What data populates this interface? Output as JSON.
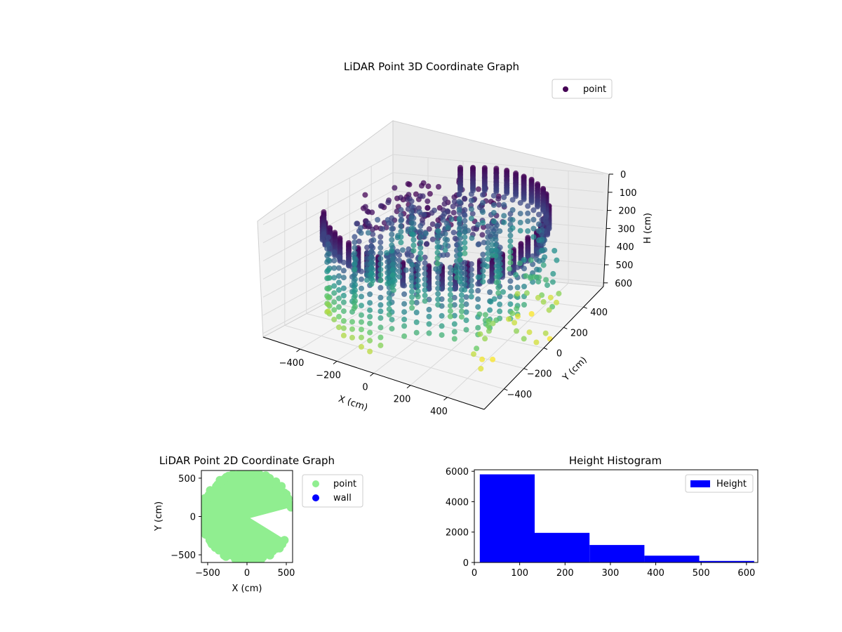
{
  "chart_data": [
    {
      "type": "scatter",
      "projection": "3d",
      "title": "LiDAR Point 3D Coordinate Graph",
      "xlabel": "X (cm)",
      "ylabel": "Y (cm)",
      "zlabel": "H (cm)",
      "xticks": [
        -400,
        -200,
        0,
        200,
        400
      ],
      "yticks": [
        -400,
        -200,
        0,
        200,
        400
      ],
      "zticks": [
        0,
        100,
        200,
        300,
        400,
        500,
        600
      ],
      "xlim": [
        -600,
        600
      ],
      "ylim": [
        -600,
        600
      ],
      "zlim": [
        0,
        620
      ],
      "z_axis_inverted": true,
      "colormap": "viridis",
      "color_by": "height",
      "legend": {
        "position": "upper-right",
        "entries": [
          {
            "label": "point",
            "color": "#440154"
          }
        ]
      },
      "series": [
        {
          "name": "point",
          "description_of_shape": "ring of points at radius ~550 cm, heights 0-600 cm, dense wall open toward +X/-Y, sparse scatter inside",
          "sample_points": [
            {
              "x": -550,
              "y": 0,
              "h": 50
            },
            {
              "x": -500,
              "y": 230,
              "h": 60
            },
            {
              "x": -390,
              "y": 390,
              "h": 40
            },
            {
              "x": -200,
              "y": 520,
              "h": 30
            },
            {
              "x": 0,
              "y": 550,
              "h": 20
            },
            {
              "x": 200,
              "y": 520,
              "h": 20
            },
            {
              "x": 390,
              "y": 390,
              "h": 30
            },
            {
              "x": 520,
              "y": 180,
              "h": 60
            },
            {
              "x": -520,
              "y": -180,
              "h": 60
            },
            {
              "x": -390,
              "y": -390,
              "h": 60
            },
            {
              "x": -200,
              "y": -520,
              "h": 80
            },
            {
              "x": 0,
              "y": -550,
              "h": 150
            },
            {
              "x": -480,
              "y": -300,
              "h": 450
            },
            {
              "x": -350,
              "y": -450,
              "h": 520
            },
            {
              "x": -250,
              "y": -500,
              "h": 560
            },
            {
              "x": 300,
              "y": -200,
              "h": 480
            },
            {
              "x": 420,
              "y": 0,
              "h": 500
            },
            {
              "x": 520,
              "y": 300,
              "h": 600
            }
          ]
        }
      ]
    },
    {
      "type": "scatter",
      "title": "LiDAR Point 2D Coordinate Graph",
      "xlabel": "X (cm)",
      "ylabel": "Y (cm)",
      "xticks": [
        -500,
        0,
        500
      ],
      "yticks": [
        -500,
        0,
        500
      ],
      "xlim": [
        -580,
        580
      ],
      "ylim": [
        -600,
        600
      ],
      "legend": {
        "position": "outside-right",
        "entries": [
          {
            "label": "point",
            "color": "#90ee90"
          },
          {
            "label": "wall",
            "color": "#0000ff"
          }
        ]
      },
      "series": [
        {
          "name": "point",
          "color": "#90ee90",
          "description_of_shape": "filled disc of radius ~550 cm with a wedge cut out toward +X between ~+10° and ~-30°"
        },
        {
          "name": "wall",
          "color": "#0000ff",
          "points": []
        }
      ]
    },
    {
      "type": "bar",
      "title": "Height Histogram",
      "xlabel": "",
      "ylabel": "",
      "bins": [
        [
          12,
          133
        ],
        [
          133,
          254
        ],
        [
          254,
          375
        ],
        [
          375,
          496
        ],
        [
          496,
          617
        ]
      ],
      "values": [
        5800,
        1950,
        1150,
        450,
        100
      ],
      "xticks": [
        0,
        100,
        200,
        300,
        400,
        500,
        600
      ],
      "yticks": [
        0,
        2000,
        4000,
        6000
      ],
      "xlim": [
        0,
        625
      ],
      "ylim": [
        0,
        6100
      ],
      "color": "#0000ff",
      "legend": {
        "position": "upper-right",
        "entries": [
          {
            "label": "Height",
            "color": "#0000ff"
          }
        ]
      }
    }
  ]
}
